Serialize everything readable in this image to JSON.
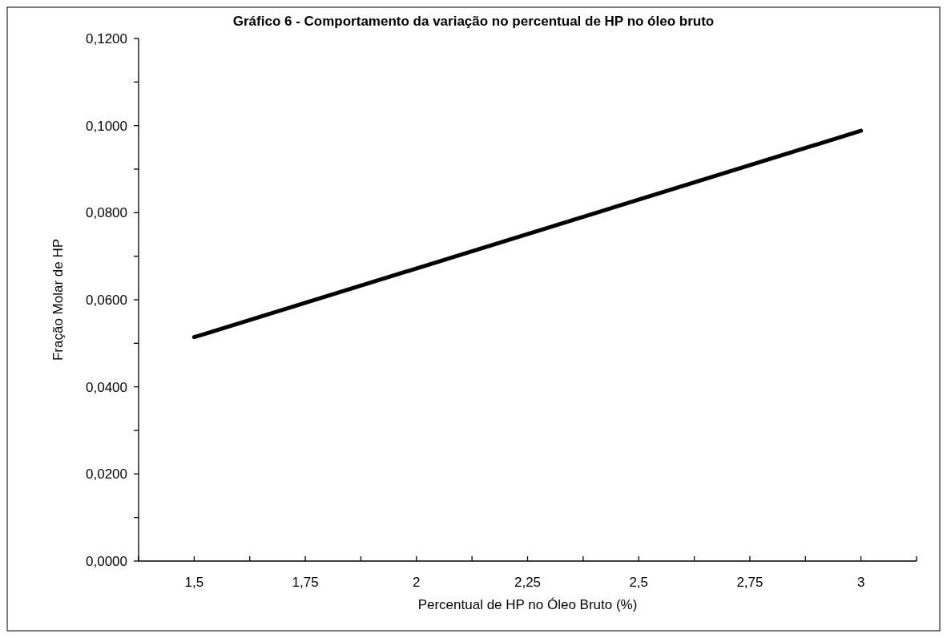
{
  "chart_data": {
    "type": "line",
    "title": "Gráfico 6 - Comportamento da variação no percentual de HP no óleo bruto",
    "xlabel": "Percentual de HP no Óleo Bruto (%)",
    "ylabel": "Fração Molar de HP",
    "x": [
      1.5,
      3
    ],
    "series": [
      {
        "color": "#000000",
        "values": [
          0.0514,
          0.0988
        ]
      }
    ],
    "xlim": [
      1.375,
      3.125
    ],
    "xticks": [
      {
        "value": 1.375,
        "label": null
      },
      {
        "value": 1.5,
        "label": "1,5"
      },
      {
        "value": 1.625,
        "label": null
      },
      {
        "value": 1.75,
        "label": "1,75"
      },
      {
        "value": 1.875,
        "label": null
      },
      {
        "value": 2,
        "label": "2"
      },
      {
        "value": 2.125,
        "label": null
      },
      {
        "value": 2.25,
        "label": "2,25"
      },
      {
        "value": 2.375,
        "label": null
      },
      {
        "value": 2.5,
        "label": "2,5"
      },
      {
        "value": 2.625,
        "label": null
      },
      {
        "value": 2.75,
        "label": "2,75"
      },
      {
        "value": 2.875,
        "label": null
      },
      {
        "value": 3,
        "label": "3"
      },
      {
        "value": 3.125,
        "label": null
      }
    ],
    "ylim": [
      0,
      0.12
    ],
    "yticks": [
      {
        "value": 0,
        "label": "0,0000"
      },
      {
        "value": 0.01,
        "label": null
      },
      {
        "value": 0.02,
        "label": "0,0200"
      },
      {
        "value": 0.03,
        "label": null
      },
      {
        "value": 0.04,
        "label": "0,0400"
      },
      {
        "value": 0.05,
        "label": null
      },
      {
        "value": 0.06,
        "label": "0,0600"
      },
      {
        "value": 0.07,
        "label": null
      },
      {
        "value": 0.08,
        "label": "0,0800"
      },
      {
        "value": 0.09,
        "label": null
      },
      {
        "value": 0.1,
        "label": "0,1000"
      },
      {
        "value": 0.11,
        "label": null
      },
      {
        "value": 0.12,
        "label": "0,1200"
      }
    ],
    "grid": false,
    "marker": "none",
    "line_style": "solid"
  }
}
